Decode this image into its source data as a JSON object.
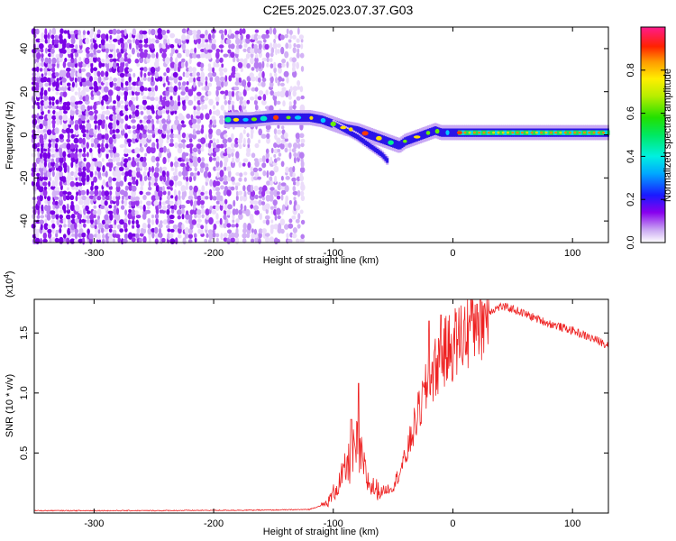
{
  "title": "C2E5.2025.023.07.37.G03",
  "chart_data": [
    {
      "type": "heatmap",
      "xlabel": "Height of straight line (km)",
      "ylabel": "Frequency (Hz)",
      "xlim": [
        -350,
        130
      ],
      "ylim": [
        -50,
        50
      ],
      "xticks": [
        -300,
        -200,
        -100,
        0,
        100
      ],
      "yticks": [
        -40,
        -20,
        0,
        20,
        40
      ],
      "xtick_labels": [
        "-300",
        "-200",
        "-100",
        "0",
        "100"
      ],
      "ytick_labels": [
        "-40",
        "-20",
        "0",
        "20",
        "40"
      ],
      "noise_region_x": [
        -350,
        -125
      ],
      "signal_track": {
        "x": [
          -190,
          -170,
          -150,
          -130,
          -120,
          -110,
          -100,
          -90,
          -80,
          -70,
          -60,
          -50,
          -45,
          -40,
          -30,
          -20,
          -15,
          -10,
          0,
          20,
          50,
          80,
          110,
          130
        ],
        "y": [
          7,
          7,
          8,
          8,
          8,
          7,
          5,
          3,
          2,
          0,
          -2,
          -4,
          -5,
          -3,
          -1,
          1,
          2,
          1,
          1,
          1,
          1,
          1,
          1,
          1
        ]
      },
      "branch_track": {
        "x": [
          -100,
          -90,
          -80,
          -70,
          -60,
          -55
        ],
        "y": [
          5,
          2,
          -1,
          -5,
          -9,
          -12
        ]
      },
      "colorbar": {
        "label": "Normalized spectral amplitude",
        "range": [
          0,
          1
        ],
        "ticks": [
          0.0,
          0.2,
          0.4,
          0.6,
          0.8
        ],
        "tick_labels": [
          "0.0",
          "0.2",
          "0.4",
          "0.6",
          "0.8"
        ]
      }
    },
    {
      "type": "line",
      "xlabel": "Height of straight line (km)",
      "ylabel": "SNR (10 * v/v)",
      "multiplier_label": "(x10",
      "multiplier_exp": "4",
      "multiplier_close": ")",
      "xlim": [
        -350,
        130
      ],
      "ylim": [
        0,
        1.78
      ],
      "xticks": [
        -300,
        -200,
        -100,
        0,
        100
      ],
      "yticks": [
        0.5,
        1.0,
        1.5
      ],
      "xtick_labels": [
        "-300",
        "-200",
        "-100",
        "0",
        "100"
      ],
      "ytick_labels": [
        "0.5",
        "1.0",
        "1.5"
      ],
      "series": [
        {
          "color": "#ee2222",
          "envelope": {
            "x": [
              -350,
              -250,
              -150,
              -120,
              -105,
              -95,
              -90,
              -85,
              -80,
              -75,
              -72,
              -68,
              -60,
              -50,
              -40,
              -30,
              -20,
              -10,
              0,
              10,
              20,
              30,
              40,
              50,
              60,
              70,
              80,
              90,
              100,
              110,
              120,
              130
            ],
            "y": [
              0.02,
              0.02,
              0.025,
              0.03,
              0.08,
              0.25,
              0.35,
              0.45,
              0.55,
              0.4,
              0.28,
              0.22,
              0.18,
              0.22,
              0.45,
              0.8,
              1.1,
              1.3,
              1.4,
              1.5,
              1.6,
              1.68,
              1.72,
              1.7,
              1.66,
              1.62,
              1.58,
              1.55,
              1.52,
              1.48,
              1.44,
              1.4
            ]
          },
          "peaks": [
            {
              "x": -85,
              "y": 0.78
            },
            {
              "x": -79,
              "y": 1.08
            },
            {
              "x": -20,
              "y": 1.6
            },
            {
              "x": -10,
              "y": 1.65
            },
            {
              "x": 15,
              "y": 1.78
            },
            {
              "x": 20,
              "y": 1.74
            }
          ]
        }
      ]
    }
  ]
}
